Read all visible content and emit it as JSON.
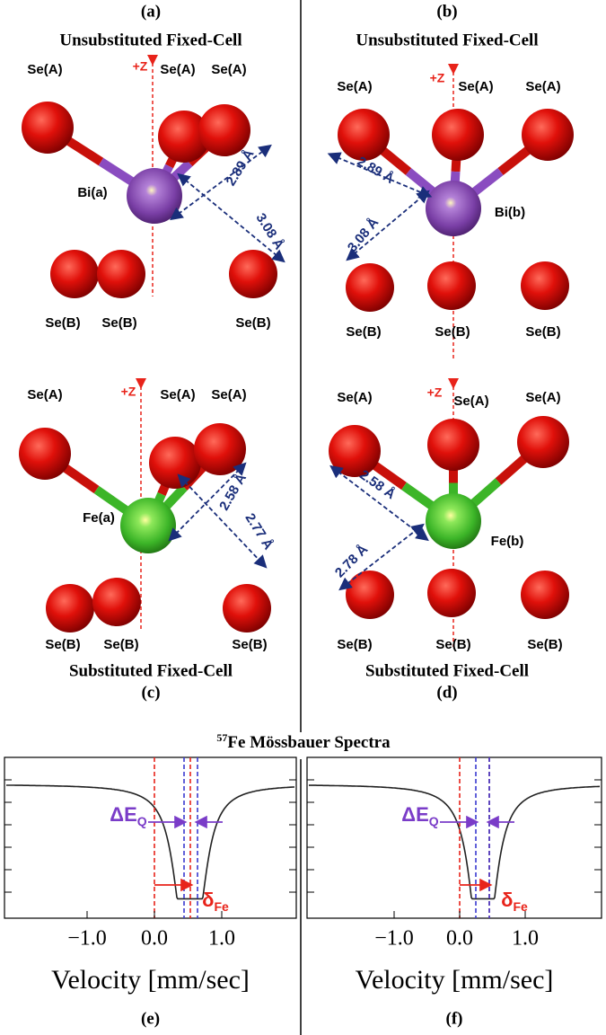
{
  "panels": [
    {
      "label": "(a)",
      "title": "Unsubstituted Fixed-Cell",
      "axis": "+Z",
      "top_atoms": [
        "Se(A)",
        "Se(A)",
        "Se(A)"
      ],
      "center_atom": "Bi(a)",
      "bottom_atoms": [
        "Se(B)",
        "Se(B)",
        "Se(B)"
      ],
      "distances": [
        "2.89 Å",
        "3.08 Å"
      ]
    },
    {
      "label": "(b)",
      "title": "Unsubstituted Fixed-Cell",
      "axis": "+Z",
      "top_atoms": [
        "Se(A)",
        "Se(A)",
        "Se(A)"
      ],
      "center_atom": "Bi(b)",
      "bottom_atoms": [
        "Se(B)",
        "Se(B)",
        "Se(B)"
      ],
      "distances": [
        "2.89 Å",
        "3.08 Å"
      ]
    },
    {
      "label": "(c)",
      "title": "Substituted Fixed-Cell",
      "axis": "+Z",
      "top_atoms": [
        "Se(A)",
        "Se(A)",
        "Se(A)"
      ],
      "center_atom": "Fe(a)",
      "bottom_atoms": [
        "Se(B)",
        "Se(B)",
        "Se(B)"
      ],
      "distances": [
        "2.58 Å",
        "2.77 Å"
      ]
    },
    {
      "label": "(d)",
      "title": "Substituted Fixed-Cell",
      "axis": "+Z",
      "top_atoms": [
        "Se(A)",
        "Se(A)",
        "Se(A)"
      ],
      "center_atom": "Fe(b)",
      "bottom_atoms": [
        "Se(B)",
        "Se(B)",
        "Se(B)"
      ],
      "distances": [
        "2.58 Å",
        "2.78 Å"
      ]
    }
  ],
  "spectra_title": {
    "sup": "57",
    "text": "Fe Mössbauer Spectra"
  },
  "spectra": [
    {
      "label": "(e)",
      "xticks": [
        "−1.0",
        "0.0",
        "1.0"
      ],
      "xlabel": "Velocity [mm/sec]",
      "quad_split": {
        "main": "ΔE",
        "sub": "Q"
      },
      "isomer_shift": {
        "main": "δ",
        "sub": "Fe"
      }
    },
    {
      "label": "(f)",
      "xticks": [
        "−1.0",
        "0.0",
        "1.0"
      ],
      "xlabel": "Velocity [mm/sec]",
      "quad_split": {
        "main": "ΔE",
        "sub": "Q"
      },
      "isomer_shift": {
        "main": "δ",
        "sub": "Fe"
      }
    }
  ]
}
